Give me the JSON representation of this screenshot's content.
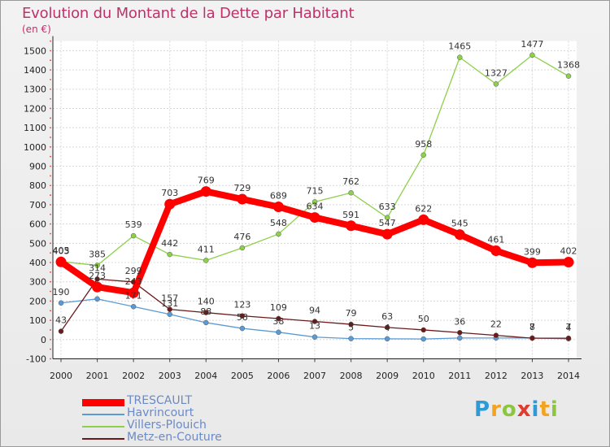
{
  "title": "Evolution du Montant de la Dette par Habitant",
  "unit_label": "(en €)",
  "brand": {
    "text": "Proxiti",
    "letters": [
      {
        "ch": "P",
        "color": "#2e9ad6"
      },
      {
        "ch": "r",
        "color": "#f3a31f"
      },
      {
        "ch": "o",
        "color": "#8cc63f"
      },
      {
        "ch": "x",
        "color": "#e23a2d"
      },
      {
        "ch": "i",
        "color": "#2e9ad6"
      },
      {
        "ch": "t",
        "color": "#f3a31f"
      },
      {
        "ch": "i",
        "color": "#8cc63f"
      }
    ]
  },
  "chart_data": {
    "type": "line",
    "title": "Evolution du Montant de la Dette par Habitant",
    "ylabel": "(en €)",
    "xlabel": "",
    "x": [
      "2000",
      "2001",
      "2002",
      "2003",
      "2004",
      "2005",
      "2006",
      "2007",
      "2008",
      "2009",
      "2010",
      "2011",
      "2012",
      "2013",
      "2014"
    ],
    "y_ticks": [
      -100,
      0,
      100,
      200,
      300,
      400,
      500,
      600,
      700,
      800,
      900,
      1000,
      1100,
      1200,
      1300,
      1400,
      1500
    ],
    "ylim": [
      -100,
      1550
    ],
    "legend_position": "bottom-left",
    "series": [
      {
        "name": "TRESCAULT",
        "color": "#ff0000",
        "values": [
          403,
          273,
          243,
          703,
          769,
          729,
          689,
          634,
          591,
          547,
          622,
          545,
          461,
          399,
          402
        ],
        "labels": [
          "403",
          "273",
          "243",
          "703",
          "769",
          "729",
          "689",
          "634",
          "591",
          "547",
          "622",
          "545",
          "461",
          "399",
          "402"
        ]
      },
      {
        "name": "Havrincourt",
        "color": "#5b9bd5",
        "values": [
          190,
          211,
          171,
          131,
          88,
          58,
          38,
          13,
          5,
          4,
          3,
          8,
          8,
          8,
          4
        ],
        "labels": [
          "190",
          "",
          "171",
          "131",
          "88",
          "58",
          "38",
          "13",
          "5",
          "4",
          "",
          "",
          "",
          "8",
          "4"
        ]
      },
      {
        "name": "Villers-Plouich",
        "color": "#8dd04a",
        "values": [
          405,
          385,
          539,
          442,
          411,
          476,
          548,
          715,
          762,
          633,
          958,
          1465,
          1327,
          1477,
          1368
        ],
        "labels": [
          "405",
          "385",
          "539",
          "442",
          "411",
          "476",
          "548",
          "715",
          "762",
          "633",
          "958",
          "1465",
          "1327",
          "1477",
          "1368"
        ]
      },
      {
        "name": "Metz-en-Couture",
        "color": "#6b1a1a",
        "values": [
          43,
          314,
          299,
          157,
          140,
          123,
          109,
          94,
          79,
          63,
          50,
          36,
          22,
          7,
          7
        ],
        "labels": [
          "43",
          "314",
          "299",
          "157",
          "140",
          "123",
          "109",
          "94",
          "79",
          "63",
          "50",
          "36",
          "22",
          "7",
          "7"
        ]
      }
    ]
  }
}
